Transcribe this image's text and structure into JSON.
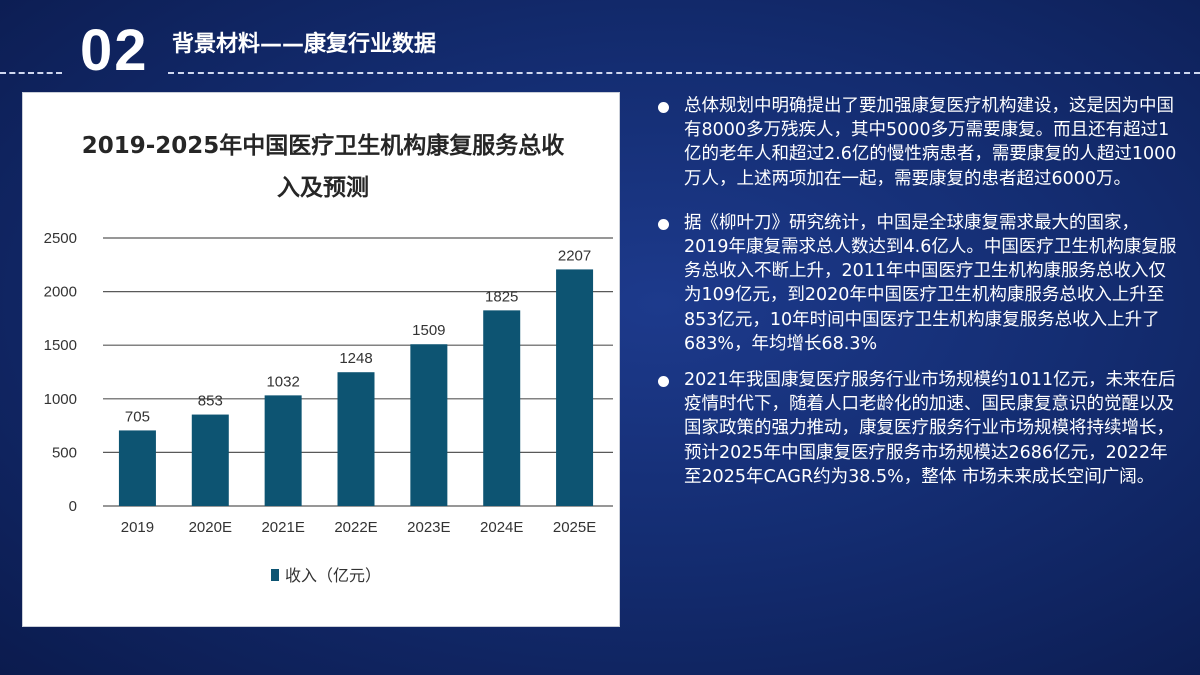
{
  "header": {
    "number": "02",
    "title": "背景材料——康复行业数据"
  },
  "colors": {
    "bar": "#0d5472",
    "background": "#142d72",
    "panel": "#ffffff"
  },
  "chart_data": {
    "type": "bar",
    "title_lines": [
      "2019-2025年中国医疗卫生机构康复服务总收",
      "入及预测"
    ],
    "categories": [
      "2019",
      "2020E",
      "2021E",
      "2022E",
      "2023E",
      "2024E",
      "2025E"
    ],
    "series": [
      {
        "name": "收入（亿元）",
        "values": [
          705,
          853,
          1032,
          1248,
          1509,
          1825,
          2207
        ]
      }
    ],
    "y_ticks": [
      "0",
      "500",
      "1000",
      "1500",
      "2000",
      "2500"
    ],
    "ylim": [
      0,
      2500
    ],
    "grid": true,
    "legend_position": "bottom-left",
    "data_labels": true
  },
  "bullets": [
    {
      "text": "总体规划中明确提出了要加强康复医疗机构建设，这是因为中国有8000多万残疾人，其中5000多万需要康复。而且还有超过1亿的老年人和超过2.6亿的慢性病患者，需要康复的人超过1000万人，上述两项加在一起，需要康复的患者超过6000万。"
    },
    {
      "text": "据《柳叶刀》研究统计，中国是全球康复需求最大的国家，2019年康复需求总人数达到4.6亿人。中国医疗卫生机构康复服务总收入不断上升，2011年中国医疗卫生机构康服务总收入仅为109亿元，到2020年中国医疗卫生机构康服务总收入上升至853亿元，10年时间中国医疗卫生机构康复服务总收入上升了683%，年均增长68.3%"
    },
    {
      "text": "2021年我国康复医疗服务行业市场规模约1011亿元，未来在后疫情时代下，随着人口老龄化的加速、国民康复意识的觉醒以及国家政策的强力推动，康复医疗服务行业市场规模将持续增长，预计2025年中国康复医疗服务市场规模达2686亿元，2022年至2025年CAGR约为38.5%，整体 市场未来成长空间广阔。"
    }
  ]
}
